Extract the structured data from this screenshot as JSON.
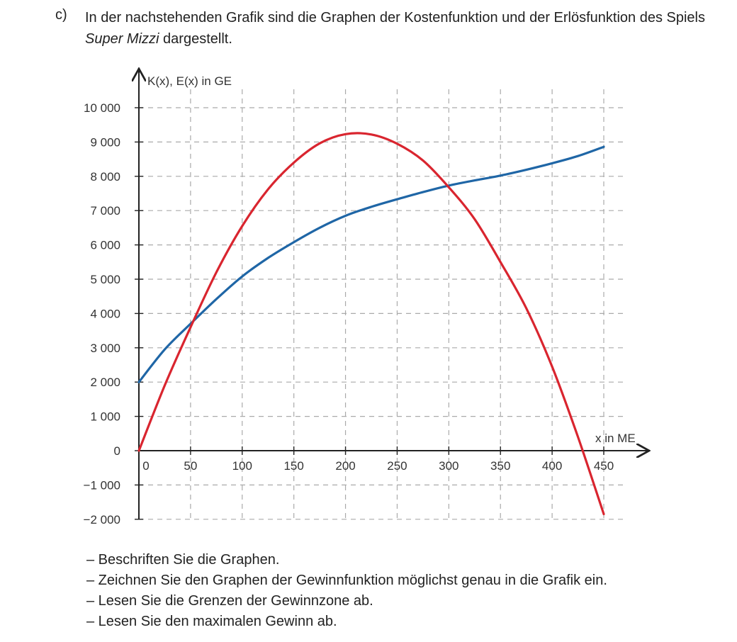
{
  "task": {
    "label": "c)",
    "intro_before": "In der nachstehenden Grafik sind die Graphen der Kostenfunktion und der Erlösfunktion des Spiels ",
    "intro_italic": "Super Mizzi",
    "intro_after": " dargestellt.",
    "instructions": [
      "– Beschriften Sie die Graphen.",
      "– Zeichnen Sie den Graphen der Gewinnfunktion möglichst genau in die Grafik ein.",
      "– Lesen Sie die Grenzen der Gewinnzone ab.",
      "– Lesen Sie den maximalen Gewinn ab."
    ]
  },
  "chart_data": {
    "type": "line",
    "ylabel": "K(x), E(x) in GE",
    "xlabel": "x in ME",
    "xlim": [
      0,
      450
    ],
    "ylim": [
      -2000,
      10000
    ],
    "x_ticks": [
      "0",
      "50",
      "100",
      "150",
      "200",
      "250",
      "300",
      "350",
      "400",
      "450"
    ],
    "x_tick_values": [
      0,
      50,
      100,
      150,
      200,
      250,
      300,
      350,
      400,
      450
    ],
    "y_ticks": [
      "10 000",
      "9 000",
      "8 000",
      "7 000",
      "6 000",
      "5 000",
      "4 000",
      "3 000",
      "2 000",
      "1 000",
      "0",
      "−1 000",
      "−2 000"
    ],
    "y_tick_values": [
      10000,
      9000,
      8000,
      7000,
      6000,
      5000,
      4000,
      3000,
      2000,
      1000,
      0,
      -1000,
      -2000
    ],
    "grid": true,
    "colors": {
      "cost": "#1f66a6",
      "revenue": "#d9252f",
      "grid": "#aaaaaa",
      "axis": "#222222"
    },
    "series": [
      {
        "key": "cost",
        "x": [
          0,
          25,
          50,
          75,
          100,
          125,
          150,
          175,
          200,
          225,
          250,
          275,
          300,
          325,
          350,
          375,
          400,
          425,
          450
        ],
        "y": [
          2000,
          2950,
          3700,
          4420,
          5080,
          5620,
          6080,
          6500,
          6850,
          7110,
          7330,
          7540,
          7730,
          7880,
          8020,
          8190,
          8380,
          8590,
          8860
        ]
      },
      {
        "key": "revenue",
        "x": [
          0,
          25,
          50,
          75,
          100,
          125,
          150,
          175,
          200,
          225,
          250,
          275,
          300,
          325,
          350,
          375,
          400,
          425,
          450
        ],
        "y": [
          0,
          1900,
          3600,
          5200,
          6550,
          7620,
          8400,
          8960,
          9230,
          9220,
          8950,
          8460,
          7680,
          6750,
          5500,
          4150,
          2450,
          400,
          -1850
        ]
      }
    ]
  }
}
